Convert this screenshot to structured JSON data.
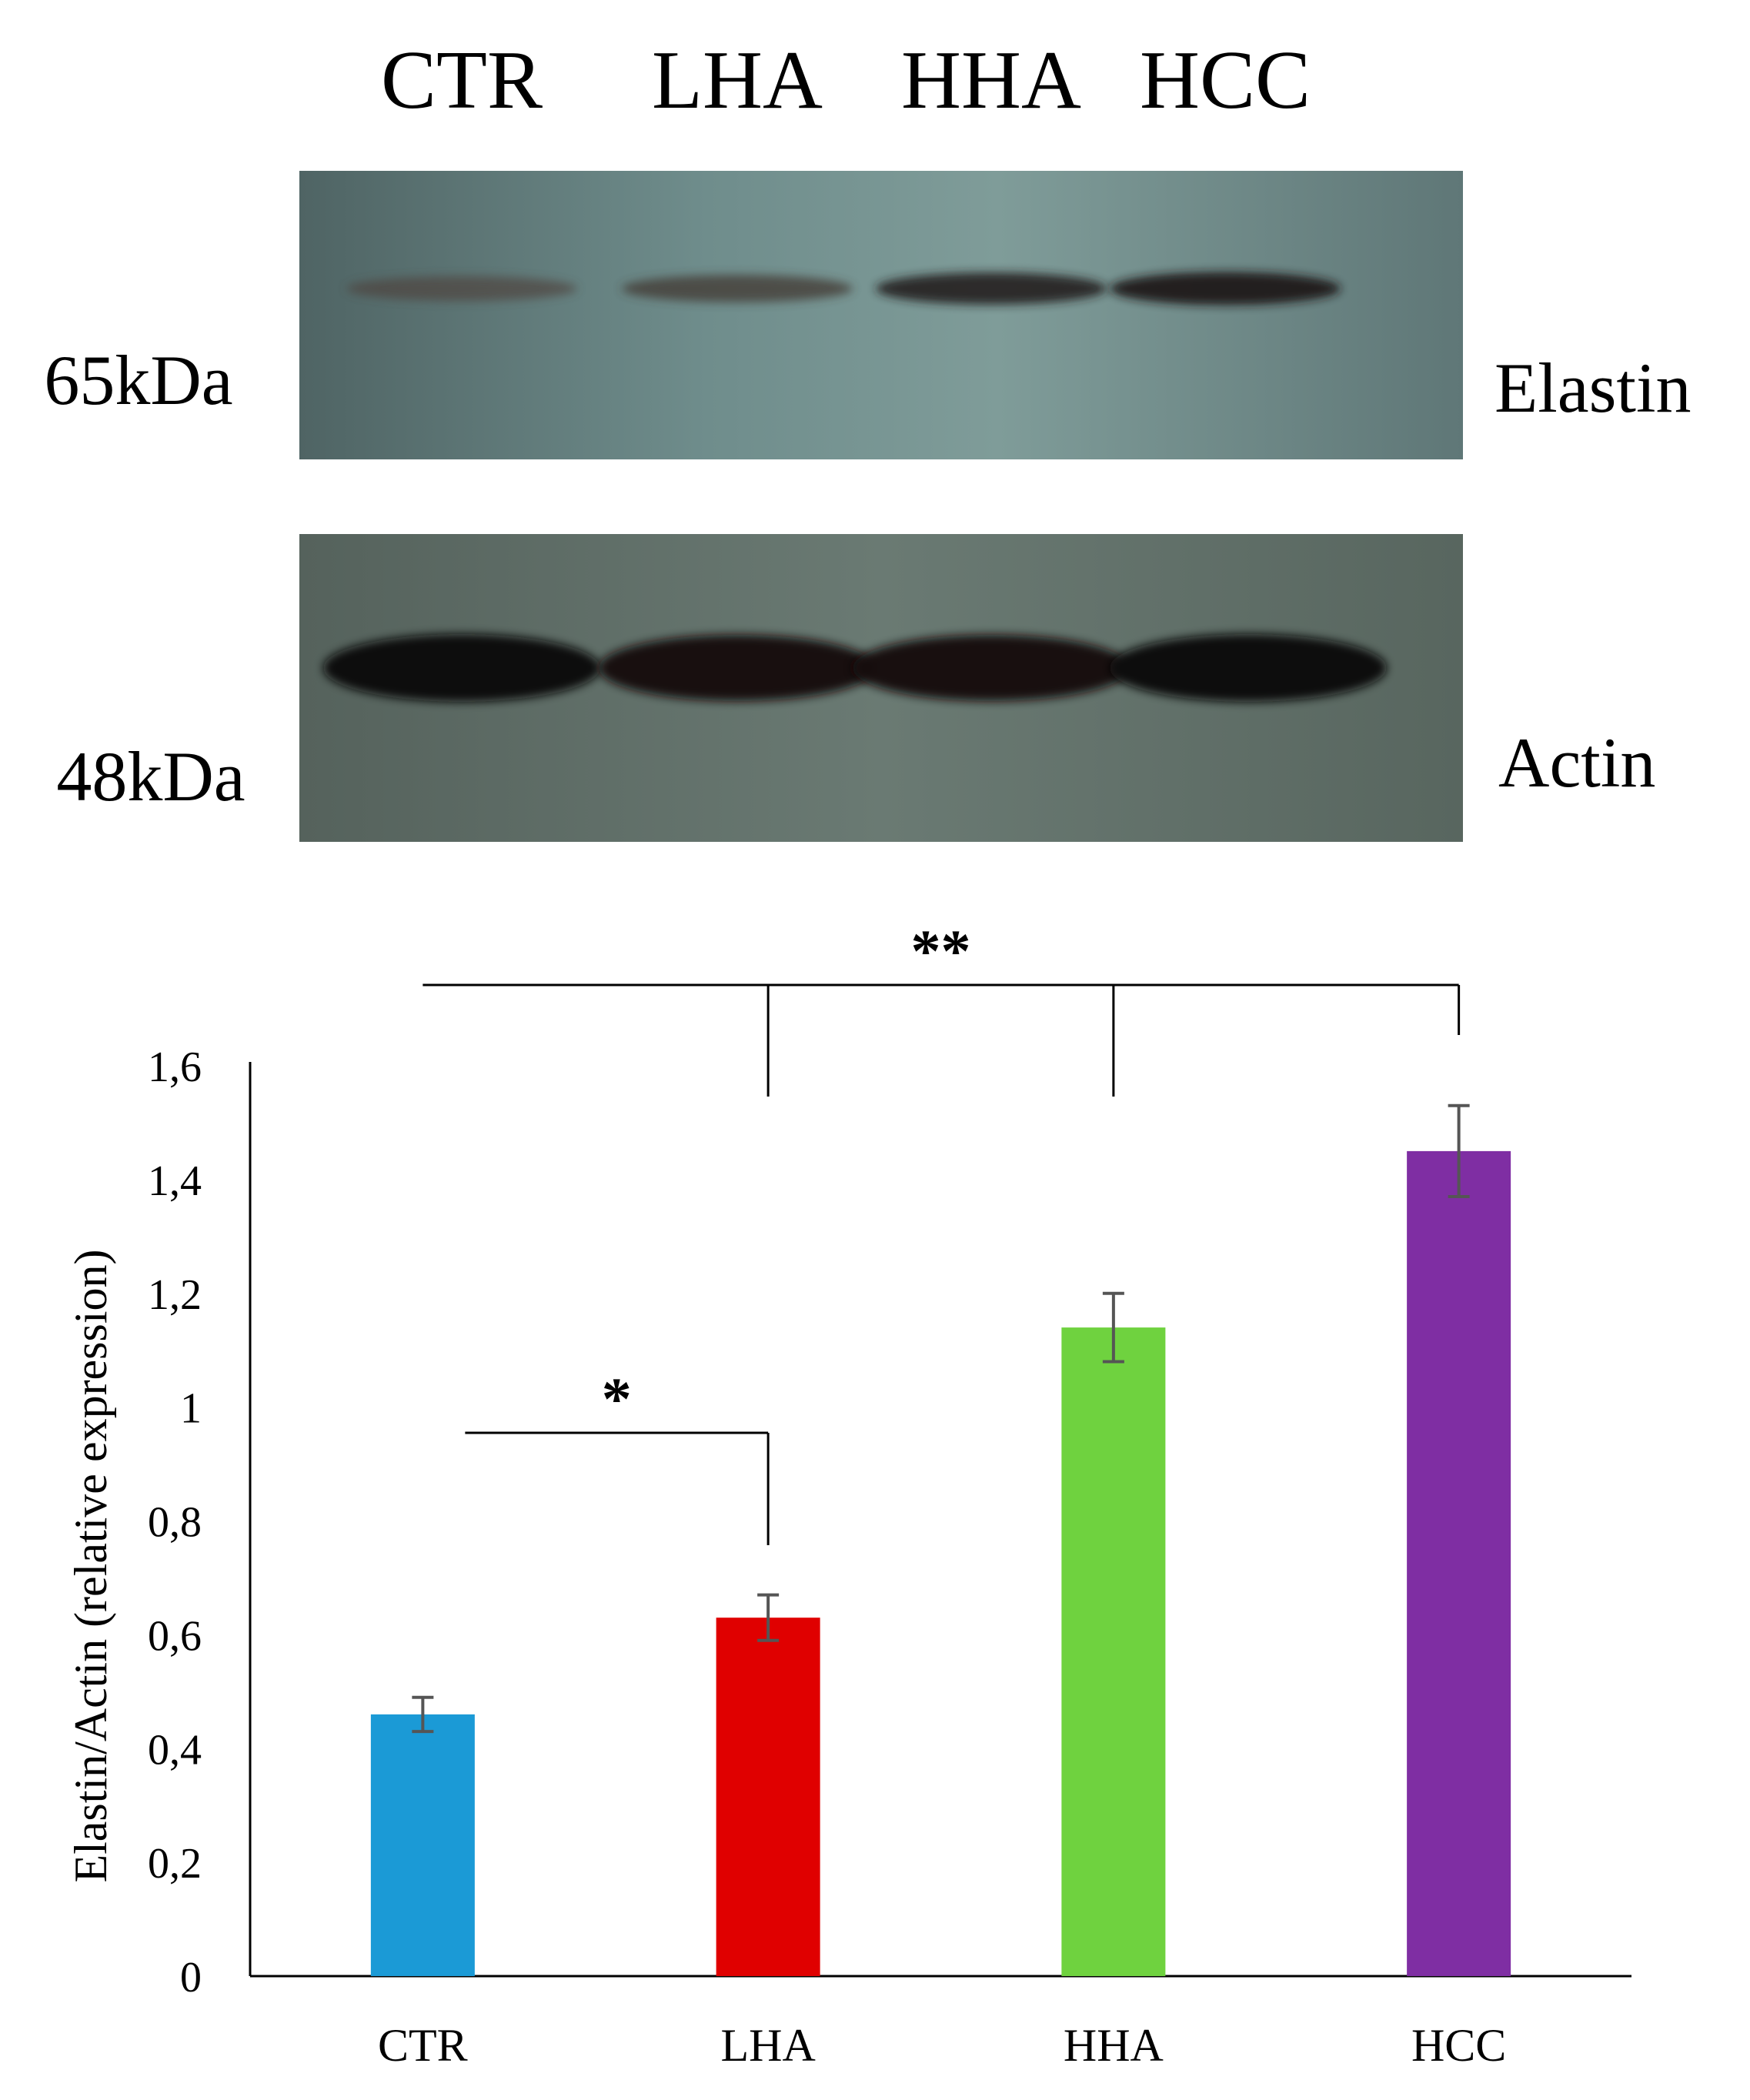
{
  "blot": {
    "lane_labels": [
      "CTR",
      "LHA",
      "HHA",
      "HCC"
    ],
    "panels": [
      {
        "marker": "65kDa",
        "protein": "Elastin",
        "band_intensity": [
          0.35,
          0.5,
          0.78,
          0.85
        ],
        "background": "#6d8a88"
      },
      {
        "marker": "48kDa",
        "protein": "Actin",
        "band_intensity": [
          1.0,
          0.95,
          0.95,
          1.0
        ],
        "background": "#5e6d66"
      }
    ]
  },
  "chart_data": {
    "type": "bar",
    "categories": [
      "CTR",
      "LHA",
      "HHA",
      "HCC"
    ],
    "values": [
      0.46,
      0.63,
      1.14,
      1.45
    ],
    "errors": [
      0.03,
      0.04,
      0.06,
      0.08
    ],
    "colors": [
      "#1b9ad6",
      "#e00000",
      "#6fd23f",
      "#7f2ea3"
    ],
    "ylabel": "Elastin/Actin (relative expression)",
    "ylim": [
      0,
      1.6
    ],
    "yticks": [
      "0",
      "0,2",
      "0,4",
      "0,6",
      "0,8",
      "1",
      "1,2",
      "1,4",
      "1,6"
    ],
    "grid": false,
    "annotations": [
      {
        "label": "*",
        "from": "CTR",
        "to": [
          "LHA"
        ]
      },
      {
        "label": "**",
        "from": "CTR",
        "to": [
          "LHA",
          "HHA",
          "HCC"
        ]
      }
    ]
  }
}
